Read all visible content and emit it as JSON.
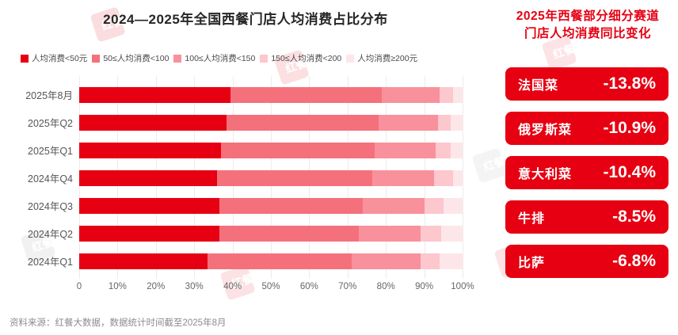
{
  "chart_data": {
    "type": "bar",
    "orientation": "horizontal",
    "stacked": true,
    "title": "2024—2025年全国西餐门店人均消费占比分布",
    "categories": [
      "2025年8月",
      "2025年Q2",
      "2025年Q1",
      "2024年Q4",
      "2024年Q3",
      "2024年Q2",
      "2024年Q1"
    ],
    "series": [
      {
        "name": "人均消费<50元",
        "color": "#e60012",
        "values": [
          39.5,
          38.5,
          37.0,
          36.0,
          36.5,
          36.5,
          33.5
        ]
      },
      {
        "name": "50≤人均消费<100",
        "color": "#f4717b",
        "values": [
          39.5,
          39.5,
          40.0,
          40.5,
          37.5,
          36.5,
          37.5
        ]
      },
      {
        "name": "100≤人均消费<150",
        "color": "#f8919b",
        "values": [
          15.0,
          15.5,
          16.0,
          16.0,
          16.0,
          16.0,
          18.0
        ]
      },
      {
        "name": "150≤人均消费<200",
        "color": "#fcc7cd",
        "values": [
          3.5,
          3.5,
          4.0,
          5.0,
          5.0,
          5.5,
          5.0
        ]
      },
      {
        "name": "人均消费≥200元",
        "color": "#fde6e9",
        "values": [
          2.5,
          3.0,
          3.0,
          2.5,
          5.0,
          5.5,
          6.0
        ]
      }
    ],
    "x_ticks": [
      "0",
      "10%",
      "20%",
      "30%",
      "40%",
      "50%",
      "60%",
      "70%",
      "80%",
      "90%",
      "100%"
    ],
    "xlim": [
      0,
      100
    ],
    "grid": "vertical",
    "legend_position": "top"
  },
  "right_panel": {
    "title_line1": "2025年西餐部分细分赛道",
    "title_line2": "门店人均消费同比变化",
    "card_color": "#e60012",
    "cards": [
      {
        "label": "法国菜",
        "value": "-13.8%"
      },
      {
        "label": "俄罗斯菜",
        "value": "-10.9%"
      },
      {
        "label": "意大利菜",
        "value": "-10.4%"
      },
      {
        "label": "牛排",
        "value": "-8.5%"
      },
      {
        "label": "比萨",
        "value": "-6.8%"
      }
    ]
  },
  "footer": {
    "source": "资料来源：红餐大数据，数据统计时间截至2025年8月"
  },
  "watermark": {
    "box_line1": "红",
    "box_line2": "餐",
    "text": "产业研究院"
  }
}
